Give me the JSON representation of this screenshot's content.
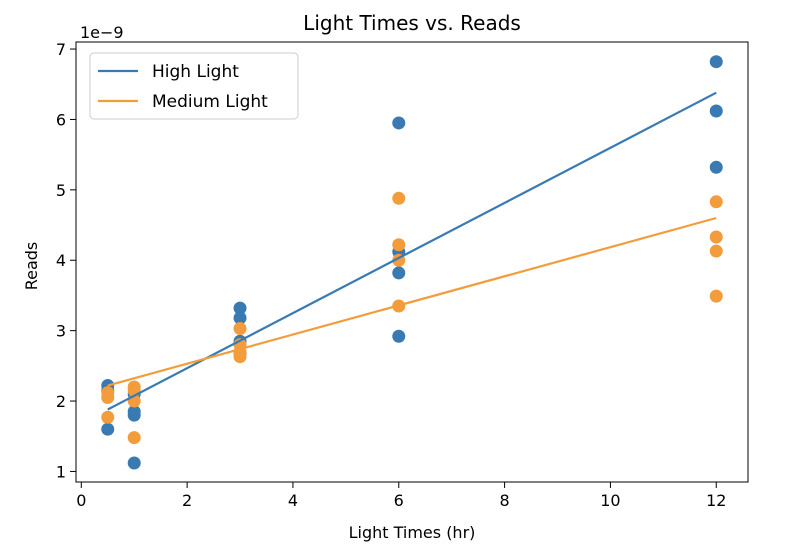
{
  "chart_data": {
    "type": "scatter",
    "title": "Light Times vs. Reads",
    "xlabel": "Light Times (hr)",
    "ylabel": "Reads",
    "y_offset_label": "1e−9",
    "xlim": [
      -0.1,
      12.6
    ],
    "ylim": [
      0.85,
      7.1
    ],
    "xticks": [
      0,
      2,
      4,
      6,
      8,
      10,
      12
    ],
    "yticks": [
      1,
      2,
      3,
      4,
      5,
      6,
      7
    ],
    "grid": false,
    "legend_position": "upper-left",
    "series": [
      {
        "name": "High Light",
        "color": "#3a7ab3",
        "points": [
          [
            0.5,
            2.22
          ],
          [
            0.5,
            2.15
          ],
          [
            0.5,
            1.6
          ],
          [
            1,
            2.1
          ],
          [
            1,
            1.85
          ],
          [
            1,
            1.8
          ],
          [
            1,
            1.12
          ],
          [
            3,
            3.32
          ],
          [
            3,
            3.18
          ],
          [
            3,
            2.85
          ],
          [
            3,
            2.68
          ],
          [
            6,
            5.95
          ],
          [
            6,
            4.12
          ],
          [
            6,
            3.82
          ],
          [
            6,
            2.92
          ],
          [
            12,
            6.82
          ],
          [
            12,
            6.12
          ],
          [
            12,
            5.32
          ]
        ],
        "fit_line": {
          "x": [
            0.5,
            12
          ],
          "y": [
            1.88,
            6.38
          ]
        }
      },
      {
        "name": "Medium Light",
        "color": "#f39c3c",
        "points": [
          [
            0.5,
            2.12
          ],
          [
            0.5,
            2.05
          ],
          [
            0.5,
            1.77
          ],
          [
            1,
            2.2
          ],
          [
            1,
            2.15
          ],
          [
            1,
            2.0
          ],
          [
            1,
            1.48
          ],
          [
            3,
            3.03
          ],
          [
            3,
            2.8
          ],
          [
            3,
            2.7
          ],
          [
            3,
            2.63
          ],
          [
            6,
            4.88
          ],
          [
            6,
            4.22
          ],
          [
            6,
            4.0
          ],
          [
            6,
            3.35
          ],
          [
            12,
            4.83
          ],
          [
            12,
            4.33
          ],
          [
            12,
            4.13
          ],
          [
            12,
            3.49
          ]
        ],
        "fit_line": {
          "x": [
            0.5,
            12
          ],
          "y": [
            2.22,
            4.6
          ]
        }
      }
    ]
  }
}
